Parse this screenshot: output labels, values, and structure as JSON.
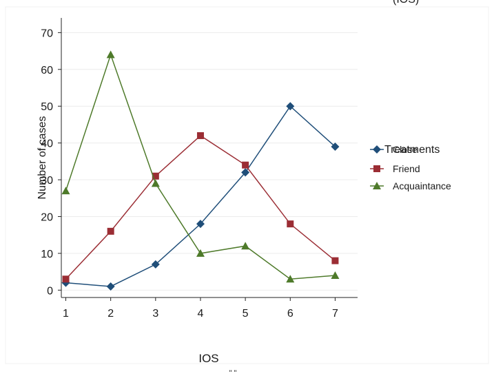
{
  "chart_data": {
    "type": "line",
    "title": "(IOS)",
    "xlabel": "IOS",
    "ylabel": "Number of cases",
    "x": [
      1,
      2,
      3,
      4,
      5,
      6,
      7
    ],
    "xlim": [
      0.9,
      7.5
    ],
    "ylim": [
      -2,
      74
    ],
    "xticks": [
      "1",
      "2",
      "3",
      "4",
      "5",
      "6",
      "7"
    ],
    "yticks": [
      "0",
      "10",
      "20",
      "30",
      "40",
      "50",
      "60",
      "70"
    ],
    "grid": true,
    "legend_title": "Treatments",
    "legend_position": "right",
    "series": [
      {
        "name": "Close",
        "color": "#1f4e79",
        "marker": "diamond",
        "values": [
          2,
          1,
          7,
          18,
          32,
          50,
          39
        ]
      },
      {
        "name": "Friend",
        "color": "#9b2d34",
        "marker": "square",
        "values": [
          3,
          16,
          31,
          42,
          34,
          18,
          8
        ]
      },
      {
        "name": "Acquaintance",
        "color": "#4e7a2a",
        "marker": "triangle",
        "values": [
          27,
          64,
          29,
          10,
          12,
          3,
          4
        ]
      }
    ],
    "footer_mark": "\" \""
  }
}
